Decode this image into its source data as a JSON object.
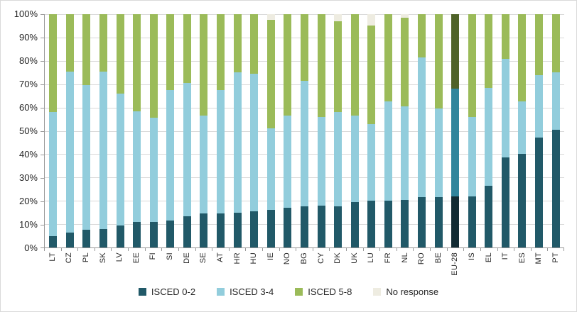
{
  "chart_data": {
    "type": "bar",
    "subtype": "stacked-100-percent",
    "title": "",
    "xlabel": "",
    "ylabel": "",
    "ylim": [
      0,
      100
    ],
    "y_tick_step": 10,
    "y_tick_labels": [
      "0%",
      "10%",
      "20%",
      "30%",
      "40%",
      "50%",
      "60%",
      "70%",
      "80%",
      "90%",
      "100%"
    ],
    "grid": true,
    "legend_position": "bottom",
    "categories": [
      "LT",
      "CZ",
      "PL",
      "SK",
      "LV",
      "EE",
      "FI",
      "SI",
      "DE",
      "SE",
      "AT",
      "HR",
      "HU",
      "IE",
      "NO",
      "BG",
      "CY",
      "DK",
      "UK",
      "LU",
      "FR",
      "NL",
      "RO",
      "BE",
      "EU-28",
      "IS",
      "EL",
      "IT",
      "ES",
      "MT",
      "PT"
    ],
    "series": [
      {
        "name": "ISCED 0-2",
        "color": "#215968",
        "values": [
          5,
          6.5,
          7.5,
          8,
          9.5,
          11,
          11,
          11.5,
          13.5,
          14.5,
          14.5,
          15,
          15.5,
          16,
          17,
          17.5,
          18,
          17.5,
          19.5,
          20,
          20,
          20.5,
          21.5,
          21.5,
          22,
          22,
          26.5,
          38.5,
          40,
          47,
          50.5
        ]
      },
      {
        "name": "ISCED 3-4",
        "color": "#92CDDC",
        "values": [
          53,
          69,
          62,
          67.5,
          56.5,
          47.5,
          44.5,
          56,
          57,
          42,
          53,
          60,
          59,
          35,
          39.5,
          54,
          38,
          40.5,
          37,
          33,
          42.5,
          40,
          60,
          38,
          46,
          34,
          42,
          42.5,
          22.5,
          27,
          24.5
        ]
      },
      {
        "name": "ISCED 5-8",
        "color": "#9BBB59",
        "values": [
          42,
          24.5,
          30.5,
          24.5,
          34,
          41.5,
          44.5,
          32.5,
          29.5,
          43.5,
          32.5,
          25,
          25.5,
          46.5,
          43.5,
          28.5,
          44,
          39,
          43.5,
          42,
          37.5,
          38,
          18.5,
          40.5,
          32,
          44,
          31.5,
          19,
          37.5,
          26,
          25
        ]
      },
      {
        "name": "No response",
        "color": "#EEECE1",
        "values": [
          0,
          0,
          0,
          0,
          0,
          0,
          0,
          0,
          0,
          0,
          0,
          0,
          0,
          2.5,
          0,
          0,
          0,
          3,
          0,
          5,
          0,
          1.5,
          0,
          0,
          0,
          0,
          0,
          0,
          0,
          0,
          0
        ]
      }
    ],
    "highlight": {
      "category": "EU-28",
      "colors": [
        "#122B33",
        "#31859C",
        "#4F6228",
        "#EEECE1"
      ]
    }
  },
  "colors": {
    "gridline": "#D9D9D9",
    "axis": "#999999",
    "text": "#262626",
    "background": "#FFFFFF",
    "border": "#D9D9D9"
  }
}
